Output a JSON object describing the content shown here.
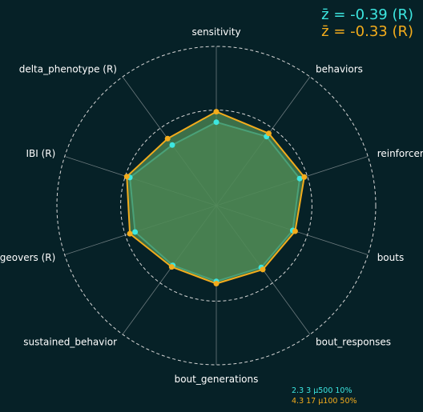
{
  "chart_data": {
    "type": "radar",
    "axes": [
      "sensitivity",
      "behaviors",
      "reinforcers",
      "bouts",
      "bout_responses",
      "bout_generations",
      "sustained_behavior",
      "changeovers (R)",
      "IBI (R)",
      "delta_phenotype (R)"
    ],
    "rlim": [
      -3,
      2
    ],
    "reference_circles": [
      0,
      2
    ],
    "grid": true,
    "series": [
      {
        "color": "#3de6e0",
        "values": [
          -0.38,
          -0.32,
          -0.25,
          -0.48,
          -0.6,
          -0.62,
          -0.68,
          -0.32,
          -0.15,
          -0.65
        ]
      },
      {
        "color": "#f3ac1c",
        "values": [
          -0.05,
          -0.2,
          -0.1,
          -0.4,
          -0.52,
          -0.55,
          -0.62,
          -0.15,
          -0.05,
          -0.4
        ]
      }
    ],
    "z_summary": [
      {
        "text": "z̄ =  -0.39 (R)",
        "color": "#3de6e0"
      },
      {
        "text": "z̄ =  -0.33 (R)",
        "color": "#f3ac1c"
      }
    ],
    "parameters": [
      {
        "text": "2.3    3    μ500    10%",
        "color": "#3de6e0"
      },
      {
        "text": "4.3    17    μ100    50%",
        "color": "#f3ac1c"
      }
    ],
    "fill_color": "#4f8a55"
  }
}
